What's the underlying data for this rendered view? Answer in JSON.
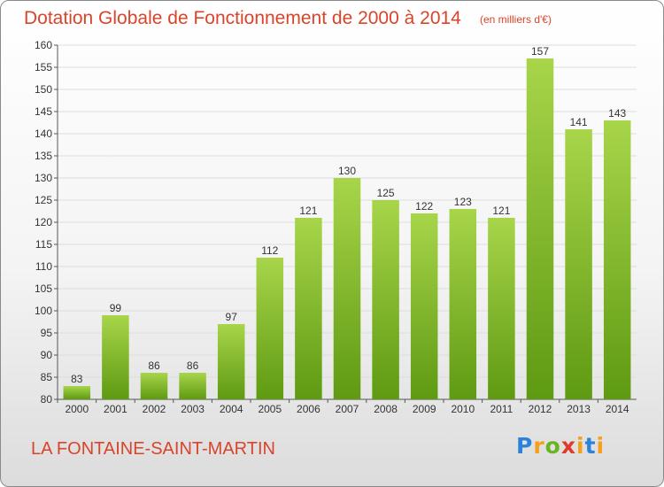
{
  "header": {
    "title": "Dotation Globale de Fonctionnement de 2000 à 2014",
    "unit": "(en milliers d'€)"
  },
  "footer": {
    "commune": "LA FONTAINE-SAINT-MARTIN",
    "brand": "Proxiti"
  },
  "colors": {
    "accent_text": "#d9442a",
    "bar_light": "#a8d54a",
    "bar_dark": "#5e9a12"
  },
  "chart_data": {
    "type": "bar",
    "title": "Dotation Globale de Fonctionnement de 2000 à 2014",
    "subtitle": "(en milliers d'€)",
    "categories": [
      "2000",
      "2001",
      "2002",
      "2003",
      "2004",
      "2005",
      "2006",
      "2007",
      "2008",
      "2009",
      "2010",
      "2011",
      "2012",
      "2013",
      "2014"
    ],
    "values": [
      83,
      99,
      86,
      86,
      97,
      112,
      121,
      130,
      125,
      122,
      123,
      121,
      157,
      141,
      143
    ],
    "ylim": [
      80,
      160
    ],
    "yticks": [
      80,
      85,
      90,
      95,
      100,
      105,
      110,
      115,
      120,
      125,
      130,
      135,
      140,
      145,
      150,
      155,
      160
    ],
    "grid": true,
    "legend": "none"
  }
}
